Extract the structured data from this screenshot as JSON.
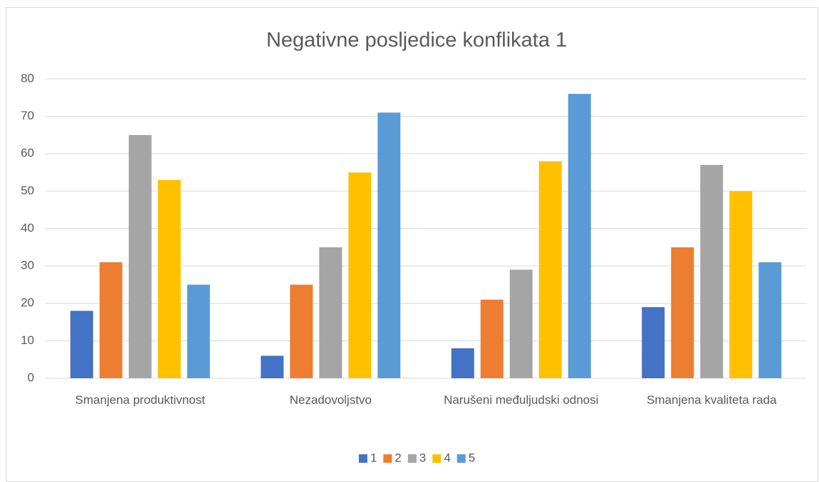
{
  "chart_data": {
    "type": "bar",
    "title": "Negativne posljedice konflikata 1",
    "categories": [
      "Smanjena produktivnost",
      "Nezadovoljstvo",
      "Narušeni međuljudski odnosi",
      "Smanjena kvaliteta rada"
    ],
    "series": [
      {
        "name": "1",
        "color": "#4472c4",
        "values": [
          18,
          6,
          8,
          19
        ]
      },
      {
        "name": "2",
        "color": "#ed7d31",
        "values": [
          31,
          25,
          21,
          35
        ]
      },
      {
        "name": "3",
        "color": "#a5a5a5",
        "values": [
          65,
          35,
          29,
          57
        ]
      },
      {
        "name": "4",
        "color": "#ffc000",
        "values": [
          53,
          55,
          58,
          50
        ]
      },
      {
        "name": "5",
        "color": "#5b9bd5",
        "values": [
          25,
          71,
          76,
          31
        ]
      }
    ],
    "ylim": [
      0,
      80
    ],
    "yticks": [
      0,
      10,
      20,
      30,
      40,
      50,
      60,
      70,
      80
    ],
    "grid": true,
    "legend": "bottom"
  }
}
